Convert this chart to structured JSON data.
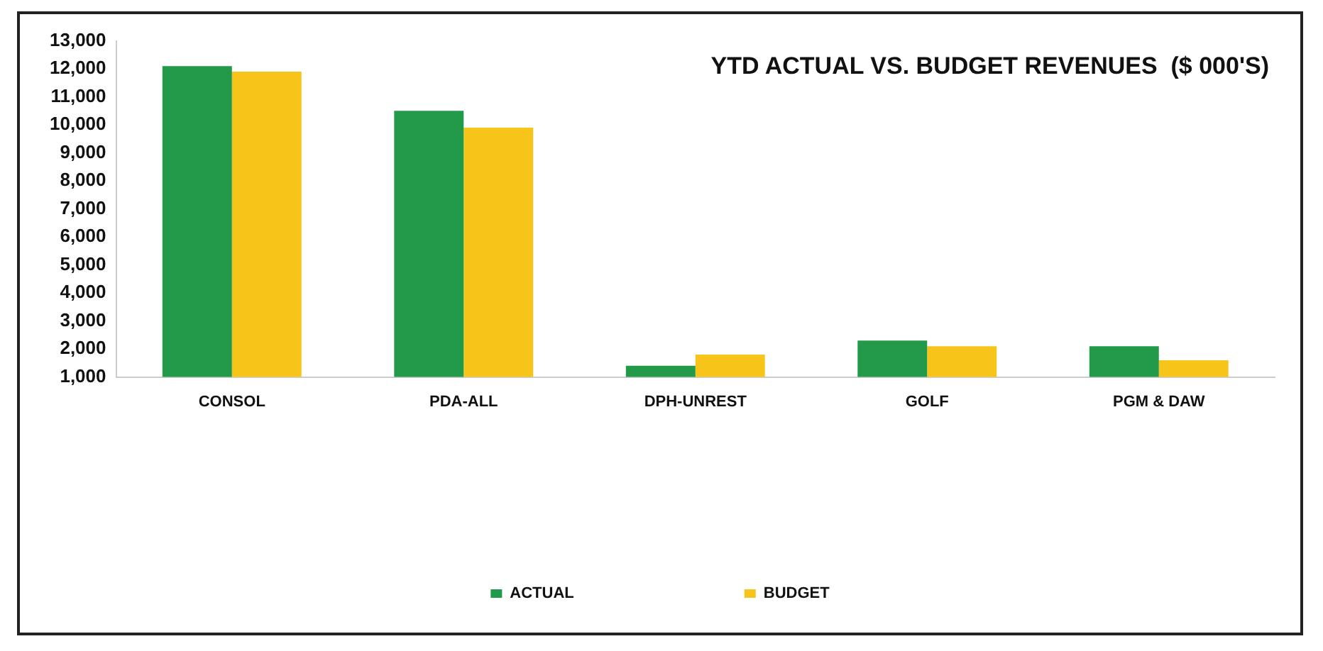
{
  "chart_data": {
    "type": "bar",
    "title": "YTD ACTUAL VS. BUDGET REVENUES  ($ 000'S)",
    "categories": [
      "CONSOL",
      "PDA-ALL",
      "DPH-UNREST",
      "GOLF",
      "PGM & DAW"
    ],
    "series": [
      {
        "name": "ACTUAL",
        "color": "#23994a",
        "values": [
          12100,
          10500,
          1400,
          2300,
          2100
        ]
      },
      {
        "name": "BUDGET",
        "color": "#f7c41a",
        "values": [
          11900,
          9900,
          1800,
          2100,
          1600
        ]
      }
    ],
    "ylim": [
      1000,
      13000
    ],
    "yticks": [
      {
        "value": 1000,
        "label": "1,000"
      },
      {
        "value": 2000,
        "label": "2,000"
      },
      {
        "value": 3000,
        "label": "3,000"
      },
      {
        "value": 4000,
        "label": "4,000"
      },
      {
        "value": 5000,
        "label": "5,000"
      },
      {
        "value": 6000,
        "label": "6,000"
      },
      {
        "value": 7000,
        "label": "7,000"
      },
      {
        "value": 8000,
        "label": "8,000"
      },
      {
        "value": 9000,
        "label": "9,000"
      },
      {
        "value": 10000,
        "label": "10,000"
      },
      {
        "value": 11000,
        "label": "11,000"
      },
      {
        "value": 12000,
        "label": "12,000"
      },
      {
        "value": 13000,
        "label": "13,000"
      }
    ],
    "grid": false,
    "legend": "bottom"
  }
}
